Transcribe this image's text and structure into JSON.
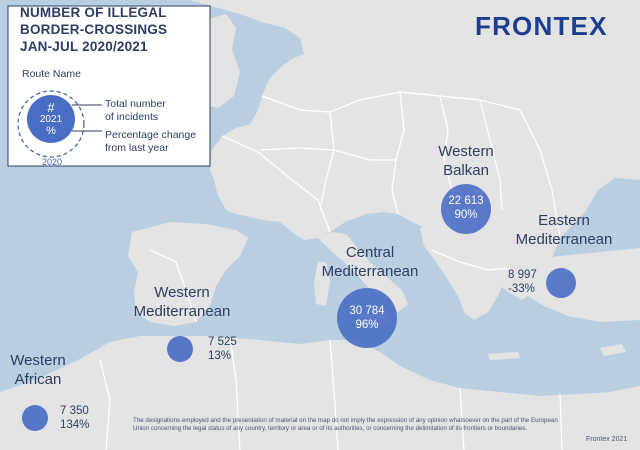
{
  "title_lines": [
    "NUMBER OF ILLEGAL",
    "BORDER-CROSSINGS",
    "JAN-JUL 2020/2021"
  ],
  "legend": {
    "route_name": "Route Name",
    "circle_symbol": "#",
    "circle_year": "2021",
    "circle_percent": "%",
    "total_line1": "Total number",
    "total_line2": "of incidents",
    "change_line1": "Percentage change",
    "change_line2": "from last year",
    "outer_year": "2020"
  },
  "brand": "FRONTEX",
  "routes": [
    {
      "name_line1": "Western",
      "name_line2": "African",
      "count": "7 350",
      "change": "134%"
    },
    {
      "name_line1": "Western",
      "name_line2": "Mediterranean",
      "count": "7 525",
      "change": "13%"
    },
    {
      "name_line1": "Central",
      "name_line2": "Mediterranean",
      "count": "30 784",
      "change": "96%"
    },
    {
      "name_line1": "Western",
      "name_line2": "Balkan",
      "count": "22 613",
      "change": "90%"
    },
    {
      "name_line1": "Eastern",
      "name_line2": "Mediterranean",
      "count": "8 997",
      "change": "-33%"
    }
  ],
  "disclaimer": "The designations employed and the presentation of material on the map do not imply the expression of any opinion whatsoever on the part of the European Union concerning the legal status of any country, territory or area or of its authorities, or concerning the delimitation of its frontiers or boundaries.",
  "credit": "Frontex 2021",
  "colors": {
    "sea": "#b9cfe1",
    "land": "#e3e3e3",
    "border": "#ffffff",
    "bubble": "#4a6dc4",
    "text": "#2c3e61",
    "brand": "#1e3d8f"
  }
}
